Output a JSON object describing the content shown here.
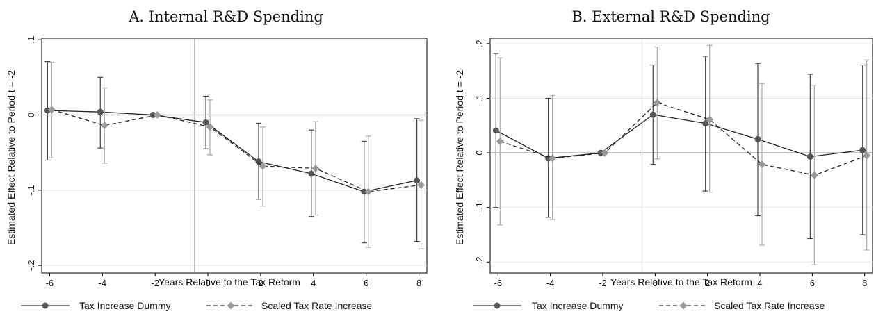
{
  "chart_data": [
    {
      "type": "line",
      "title": "A. Internal R&D Spending",
      "xlabel": "Years Relative to the Tax Reform",
      "ylabel": "Estimated Effect Relative to Period t = -2",
      "xlim": [
        -6.3,
        8.3
      ],
      "ylim": [
        -0.21,
        0.102
      ],
      "x_ticks": [
        -6,
        -4,
        -2,
        0,
        2,
        4,
        6,
        8
      ],
      "x_tick_labels": [
        "-6",
        "-4",
        "-2",
        "0",
        "2",
        "4",
        "6",
        "8"
      ],
      "y_ticks": [
        -0.2,
        -0.1,
        0,
        0.1
      ],
      "y_tick_labels": [
        "-.2",
        "-.1",
        "0",
        ".1"
      ],
      "reform_line_x": -0.5,
      "zero_line_y": 0,
      "grid": true,
      "legend_position": "bottom",
      "series": [
        {
          "name": "Tax Increase Dummy",
          "line_style": "solid",
          "marker": "circle",
          "color": "#555555",
          "ci_color": "#444444",
          "x": [
            -6,
            -4,
            -2,
            0,
            2,
            4,
            6,
            8
          ],
          "y": [
            0.006,
            0.004,
            0.0,
            -0.01,
            -0.062,
            -0.078,
            -0.102,
            -0.087
          ],
          "ci_low": [
            -0.06,
            -0.044,
            0.0,
            -0.045,
            -0.112,
            -0.135,
            -0.17,
            -0.168
          ],
          "ci_high": [
            0.071,
            0.05,
            0.0,
            0.025,
            -0.011,
            -0.02,
            -0.035,
            -0.005
          ]
        },
        {
          "name": "Scaled Tax Rate Increase",
          "line_style": "dashed",
          "marker": "diamond",
          "color": "#999999",
          "ci_color": "#aaaaaa",
          "x": [
            -6,
            -4,
            -2,
            0,
            2,
            4,
            6,
            8
          ],
          "y": [
            0.007,
            -0.014,
            0.0,
            -0.016,
            -0.068,
            -0.071,
            -0.102,
            -0.093
          ],
          "ci_low": [
            -0.057,
            -0.064,
            0.0,
            -0.053,
            -0.121,
            -0.133,
            -0.176,
            -0.178
          ],
          "ci_high": [
            0.07,
            0.036,
            0.0,
            0.02,
            -0.016,
            -0.009,
            -0.028,
            -0.007
          ]
        }
      ]
    },
    {
      "type": "line",
      "title": "B. External R&D Spending",
      "xlabel": "Years Relative to the Tax Reform",
      "ylabel": "Estimated Effect Relative to Period t = -2",
      "xlim": [
        -6.3,
        8.3
      ],
      "ylim": [
        -0.22,
        0.21
      ],
      "x_ticks": [
        -6,
        -4,
        -2,
        0,
        2,
        4,
        6,
        8
      ],
      "x_tick_labels": [
        "-6",
        "-4",
        "-2",
        "0",
        "2",
        "4",
        "6",
        "8"
      ],
      "y_ticks": [
        -0.2,
        -0.1,
        0,
        0.1,
        0.2
      ],
      "y_tick_labels": [
        "-.2",
        "-.1",
        "0",
        ".1",
        ".2"
      ],
      "reform_line_x": -0.5,
      "zero_line_y": 0,
      "grid": true,
      "legend_position": "bottom",
      "series": [
        {
          "name": "Tax Increase Dummy",
          "line_style": "solid",
          "marker": "circle",
          "color": "#555555",
          "ci_color": "#444444",
          "x": [
            -6,
            -4,
            -2,
            0,
            2,
            4,
            6,
            8
          ],
          "y": [
            0.041,
            -0.01,
            0.0,
            0.07,
            0.054,
            0.025,
            -0.007,
            0.005
          ],
          "ci_low": [
            -0.1,
            -0.118,
            0.0,
            -0.021,
            -0.07,
            -0.115,
            -0.157,
            -0.15
          ],
          "ci_high": [
            0.182,
            0.1,
            0.0,
            0.161,
            0.177,
            0.164,
            0.144,
            0.161
          ]
        },
        {
          "name": "Scaled Tax Rate Increase",
          "line_style": "dashed",
          "marker": "diamond",
          "color": "#999999",
          "ci_color": "#aaaaaa",
          "x": [
            -6,
            -4,
            -2,
            0,
            2,
            4,
            6,
            8
          ],
          "y": [
            0.021,
            -0.01,
            0.0,
            0.092,
            0.061,
            -0.021,
            -0.041,
            -0.005
          ],
          "ci_low": [
            -0.132,
            -0.122,
            0.0,
            -0.011,
            -0.072,
            -0.169,
            -0.205,
            -0.178
          ],
          "ci_high": [
            0.174,
            0.105,
            0.0,
            0.194,
            0.197,
            0.127,
            0.124,
            0.17
          ]
        }
      ]
    }
  ]
}
